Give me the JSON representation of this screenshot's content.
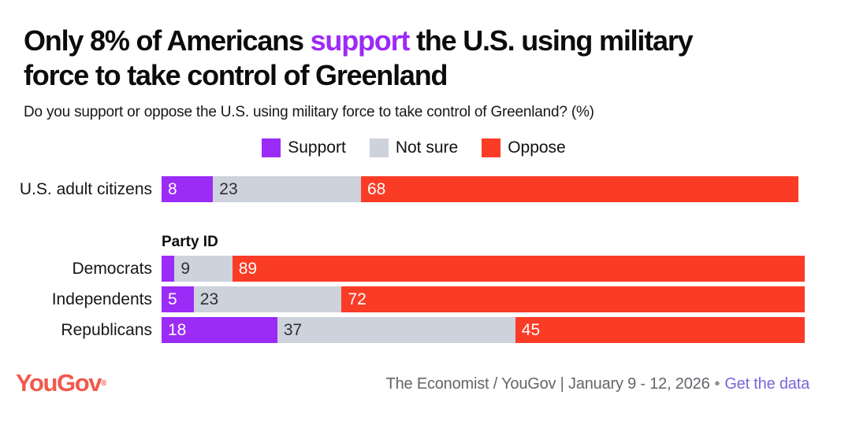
{
  "page": {
    "background": "#ffffff"
  },
  "title": {
    "prefix": "Only 8% of Americans ",
    "highlight": "support",
    "suffix": " the U.S. using military",
    "line2": "force to take control of Greenland",
    "highlight_color": "#9B2BF7",
    "text_color": "#0c0c0e"
  },
  "subtitle": "Do you support or oppose the U.S. using military force to take control of Greenland? (%)",
  "chart_data": {
    "type": "bar",
    "stacked": true,
    "orientation": "horizontal",
    "unit": "%",
    "xlim": [
      0,
      100
    ],
    "grid": false,
    "legend_position": "top-center",
    "title": "Only 8% of Americans support the U.S. using military force to take control of Greenland",
    "question": "Do you support or oppose the U.S. using military force to take control of Greenland? (%)",
    "series": [
      {
        "name": "Support",
        "color": "#9B2BF7",
        "label_color": "#ffffff"
      },
      {
        "name": "Not sure",
        "color": "#CDD2DC",
        "label_color": "#2f2f33"
      },
      {
        "name": "Oppose",
        "color": "#FA3C26",
        "label_color": "#ffffff"
      }
    ],
    "rows": [
      {
        "category": "U.S. adult citizens",
        "values": [
          8,
          23,
          68
        ],
        "labels": [
          "8",
          "23",
          "68"
        ]
      },
      {
        "category": "Democrats",
        "group_label": "Party ID",
        "values": [
          2,
          9,
          89
        ],
        "labels": [
          "",
          "9",
          "89"
        ]
      },
      {
        "category": "Independents",
        "values": [
          5,
          23,
          72
        ],
        "labels": [
          "5",
          "23",
          "72"
        ]
      },
      {
        "category": "Republicans",
        "values": [
          18,
          37,
          45
        ],
        "labels": [
          "18",
          "37",
          "45"
        ]
      }
    ]
  },
  "footer": {
    "logo_text": "YouGov",
    "logo_mark": "®",
    "logo_color": "#F2594B",
    "source_text": "The Economist / YouGov | January 9 - 12, 2026",
    "separator": "•",
    "link_text": "Get the data",
    "link_color": "#7667D9"
  }
}
